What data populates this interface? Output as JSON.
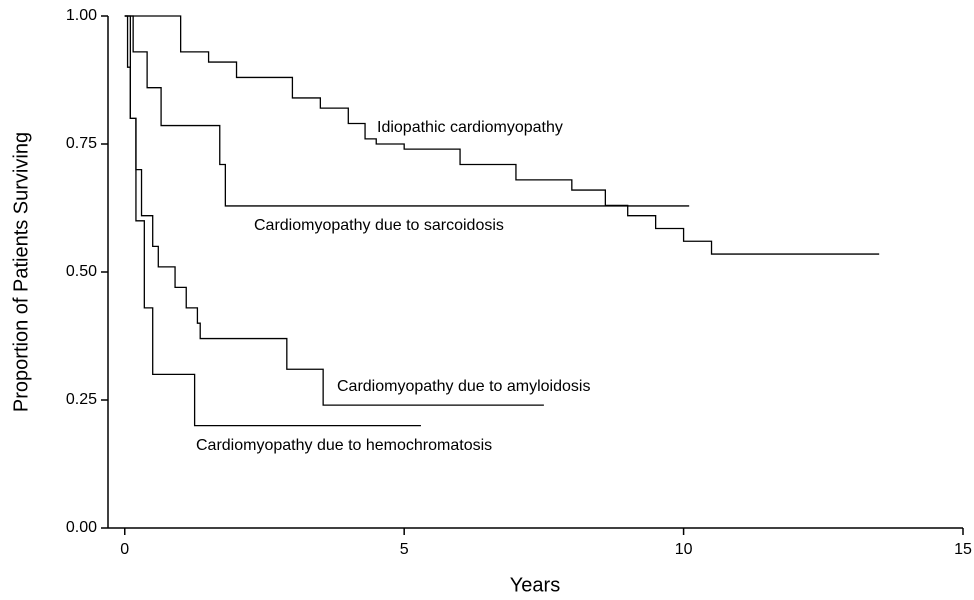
{
  "chart_data": {
    "type": "line",
    "step": "post",
    "x_label": "Years",
    "y_label": "Proportion of Patients Surviving",
    "xlim": [
      -0.3,
      15
    ],
    "xticks": [
      0,
      5,
      10,
      15
    ],
    "ylim": [
      0,
      1
    ],
    "yticks": [
      {
        "value": 0,
        "label": "0.00"
      },
      {
        "value": 0.25,
        "label": "0.25"
      },
      {
        "value": 0.5,
        "label": "0.50"
      },
      {
        "value": 0.75,
        "label": "0.75"
      },
      {
        "value": 1,
        "label": "1.00"
      }
    ],
    "grid": false,
    "series": [
      {
        "name": "Idiopathic cardiomyopathy",
        "color": "#000000",
        "x": [
          0,
          1,
          1.5,
          2,
          3,
          3.5,
          4,
          4.3,
          4.5,
          5,
          6,
          7,
          8,
          8.6,
          9,
          9.5,
          10,
          10.5,
          13.5
        ],
        "values": [
          1,
          0.93,
          0.91,
          0.88,
          0.84,
          0.82,
          0.79,
          0.76,
          0.75,
          0.74,
          0.71,
          0.68,
          0.66,
          0.63,
          0.61,
          0.585,
          0.56,
          0.535,
          0.535
        ]
      },
      {
        "name": "Cardiomyopathy due to sarcoidosis",
        "color": "#000000",
        "x": [
          0,
          0.15,
          0.4,
          0.65,
          1.7,
          1.8,
          10.1
        ],
        "values": [
          1,
          0.93,
          0.86,
          0.786,
          0.71,
          0.629,
          0.629
        ]
      },
      {
        "name": "Cardiomyopathy due to amyloidosis",
        "color": "#000000",
        "x": [
          0,
          0.05,
          0.1,
          0.2,
          0.3,
          0.5,
          0.6,
          0.9,
          1.1,
          1.3,
          1.35,
          2.9,
          3.55,
          7.5
        ],
        "values": [
          1,
          0.9,
          0.8,
          0.7,
          0.61,
          0.55,
          0.51,
          0.47,
          0.43,
          0.4,
          0.37,
          0.31,
          0.24,
          0.24
        ]
      },
      {
        "name": "Cardiomyopathy due to hemochromatosis",
        "color": "#000000",
        "x": [
          0,
          0.1,
          0.2,
          0.35,
          0.5,
          1.25,
          5.3
        ],
        "values": [
          1,
          0.8,
          0.6,
          0.43,
          0.3,
          0.2,
          0.2
        ]
      }
    ]
  }
}
